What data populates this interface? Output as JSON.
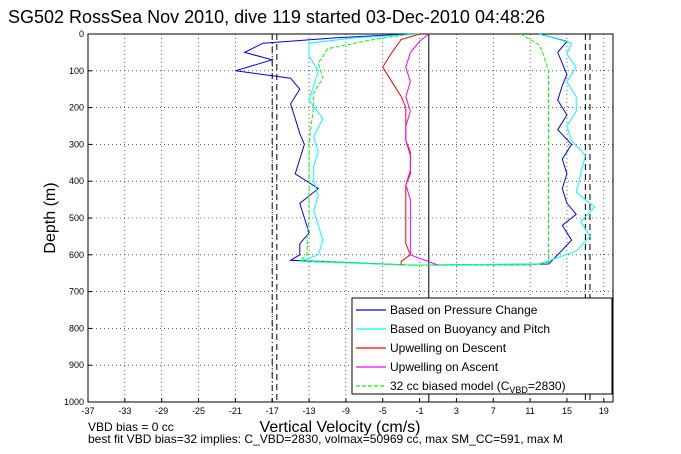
{
  "chart_data": {
    "type": "line",
    "title": "SG502 RossSea Nov 2010, dive 119 started 03-Dec-2010 04:48:26",
    "xlabel": "Vertical Velocity (cm/s)",
    "ylabel": "Depth (m)",
    "xlim": [
      -37,
      20
    ],
    "ylim": [
      1000,
      0
    ],
    "y_reversed": true,
    "grid": "dotted",
    "xticks": [
      "-37",
      "-33",
      "-29",
      "-25",
      "-21",
      "-17",
      "-13",
      "-9",
      "-5",
      "-1",
      "3",
      "7",
      "11",
      "15",
      "19"
    ],
    "yticks": [
      "0",
      "100",
      "200",
      "300",
      "400",
      "500",
      "600",
      "700",
      "800",
      "900",
      "1000"
    ],
    "legend_position": "bottom-right",
    "legend": [
      {
        "label": "Based on Pressure Change",
        "color": "#0000ff",
        "dash": "solid"
      },
      {
        "label": "Based on Buoyancy and Pitch",
        "color": "#00ffff",
        "dash": "solid"
      },
      {
        "label": "Upwelling on Descent",
        "color": "#ff0000",
        "dash": "solid"
      },
      {
        "label": "Upwelling on Ascent",
        "color": "#ff00ff",
        "dash": "solid"
      },
      {
        "label_main": "32 cc biased model (C",
        "label_sub": "VBD",
        "label_end": "=2830)",
        "color": "#00ff00",
        "dash": "dashed"
      }
    ],
    "reference_lines": [
      {
        "x": -17,
        "style": "dash-dot"
      },
      {
        "x": -16.5,
        "style": "dashed"
      },
      {
        "x": 0,
        "style": "solid"
      },
      {
        "x": 17,
        "style": "dashed"
      },
      {
        "x": 17.5,
        "style": "dashed"
      }
    ],
    "series": [
      {
        "name": "Based on Pressure Change",
        "color": "#0000ff",
        "points": [
          [
            -2,
            0
          ],
          [
            -10,
            10
          ],
          [
            -18,
            25
          ],
          [
            -20,
            50
          ],
          [
            -17,
            70
          ],
          [
            -21,
            100
          ],
          [
            -15,
            120
          ],
          [
            -14,
            150
          ],
          [
            -15,
            190
          ],
          [
            -14.5,
            230
          ],
          [
            -14,
            270
          ],
          [
            -13.5,
            300
          ],
          [
            -14,
            340
          ],
          [
            -14.5,
            380
          ],
          [
            -12,
            420
          ],
          [
            -14,
            460
          ],
          [
            -13.5,
            500
          ],
          [
            -13,
            540
          ],
          [
            -14,
            570
          ],
          [
            -14,
            600
          ],
          [
            -15,
            615
          ],
          [
            -2,
            628
          ],
          [
            13,
            625
          ],
          [
            14,
            600
          ],
          [
            15.5,
            560
          ],
          [
            14.5,
            520
          ],
          [
            16,
            490
          ],
          [
            15,
            460
          ],
          [
            14.5,
            420
          ],
          [
            15,
            380
          ],
          [
            14.5,
            340
          ],
          [
            15.5,
            300
          ],
          [
            14,
            260
          ],
          [
            15,
            220
          ],
          [
            14,
            180
          ],
          [
            14.5,
            140
          ],
          [
            15,
            110
          ],
          [
            14.5,
            80
          ],
          [
            14,
            50
          ],
          [
            15,
            20
          ],
          [
            12,
            0
          ]
        ]
      },
      {
        "name": "Based on Buoyancy and Pitch",
        "color": "#00ffff",
        "points": [
          [
            -1,
            0
          ],
          [
            -8,
            10
          ],
          [
            -13,
            25
          ],
          [
            -13,
            60
          ],
          [
            -12,
            100
          ],
          [
            -12.5,
            140
          ],
          [
            -13,
            180
          ],
          [
            -11.5,
            230
          ],
          [
            -12.5,
            280
          ],
          [
            -12,
            320
          ],
          [
            -12.5,
            360
          ],
          [
            -12.5,
            400
          ],
          [
            -12,
            440
          ],
          [
            -12.5,
            480
          ],
          [
            -12,
            520
          ],
          [
            -11.5,
            560
          ],
          [
            -12,
            600
          ],
          [
            -14,
            618
          ],
          [
            -2,
            628
          ],
          [
            12,
            625
          ],
          [
            16,
            590
          ],
          [
            17.5,
            550
          ],
          [
            16.5,
            510
          ],
          [
            18,
            470
          ],
          [
            16,
            430
          ],
          [
            16.5,
            380
          ],
          [
            17,
            330
          ],
          [
            15.5,
            290
          ],
          [
            15,
            250
          ],
          [
            16,
            210
          ],
          [
            16,
            170
          ],
          [
            15,
            130
          ],
          [
            16,
            90
          ],
          [
            15,
            55
          ],
          [
            15.5,
            25
          ],
          [
            12,
            0
          ]
        ]
      },
      {
        "name": "Upwelling on Descent",
        "color": "#ff0000",
        "points": [
          [
            -1,
            0
          ],
          [
            -3,
            15
          ],
          [
            -4,
            50
          ],
          [
            -5,
            90
          ],
          [
            -4,
            130
          ],
          [
            -3,
            170
          ],
          [
            -2.5,
            200
          ],
          [
            -2.5,
            230
          ],
          [
            -2.5,
            260
          ],
          [
            -2.5,
            290
          ],
          [
            -2,
            320
          ],
          [
            -2,
            350
          ],
          [
            -2,
            380
          ],
          [
            -2.5,
            410
          ],
          [
            -2.5,
            450
          ],
          [
            -2.5,
            490
          ],
          [
            -2.5,
            530
          ],
          [
            -2.5,
            570
          ],
          [
            -2,
            600
          ],
          [
            -3,
            618
          ],
          [
            -3,
            627
          ]
        ]
      },
      {
        "name": "Upwelling on Ascent",
        "color": "#ff00ff",
        "points": [
          [
            1,
            628
          ],
          [
            -2,
            600
          ],
          [
            -2,
            570
          ],
          [
            -2,
            530
          ],
          [
            -2,
            490
          ],
          [
            -2,
            450
          ],
          [
            -2.5,
            410
          ],
          [
            -2,
            370
          ],
          [
            -2,
            330
          ],
          [
            -2.5,
            290
          ],
          [
            -2.5,
            250
          ],
          [
            -2,
            210
          ],
          [
            -2.5,
            170
          ],
          [
            -2,
            130
          ],
          [
            -2.5,
            90
          ],
          [
            -2,
            50
          ],
          [
            -1,
            20
          ],
          [
            0,
            0
          ]
        ]
      },
      {
        "name": "32 cc biased model (CVBD=2830)",
        "color": "#00ff00",
        "dash": "dashed",
        "points": [
          [
            -2,
            0
          ],
          [
            -6,
            15
          ],
          [
            -11,
            40
          ],
          [
            -12,
            80
          ],
          [
            -11.5,
            120
          ],
          [
            -12.5,
            160
          ],
          [
            -12.5,
            200
          ],
          [
            -12.8,
            250
          ],
          [
            -13,
            300
          ],
          [
            -13,
            350
          ],
          [
            -13,
            400
          ],
          [
            -13,
            450
          ],
          [
            -13,
            500
          ],
          [
            -13.2,
            550
          ],
          [
            -13.2,
            600
          ],
          [
            -14,
            615
          ],
          [
            -2,
            628
          ],
          [
            11,
            628
          ],
          [
            13,
            620
          ],
          [
            13,
            580
          ],
          [
            13,
            540
          ],
          [
            13,
            500
          ],
          [
            13,
            460
          ],
          [
            13,
            420
          ],
          [
            13,
            380
          ],
          [
            13,
            340
          ],
          [
            13,
            300
          ],
          [
            13,
            260
          ],
          [
            13,
            220
          ],
          [
            13,
            180
          ],
          [
            13,
            140
          ],
          [
            13,
            100
          ],
          [
            12.5,
            60
          ],
          [
            12,
            30
          ],
          [
            10,
            0
          ]
        ]
      }
    ],
    "footer_line1": "VBD bias = 0 cc",
    "footer_line2": "best fit VBD bias=32 implies: C_VBD=2830, volmax=50969 cc, max SM_CC=591, max M"
  }
}
